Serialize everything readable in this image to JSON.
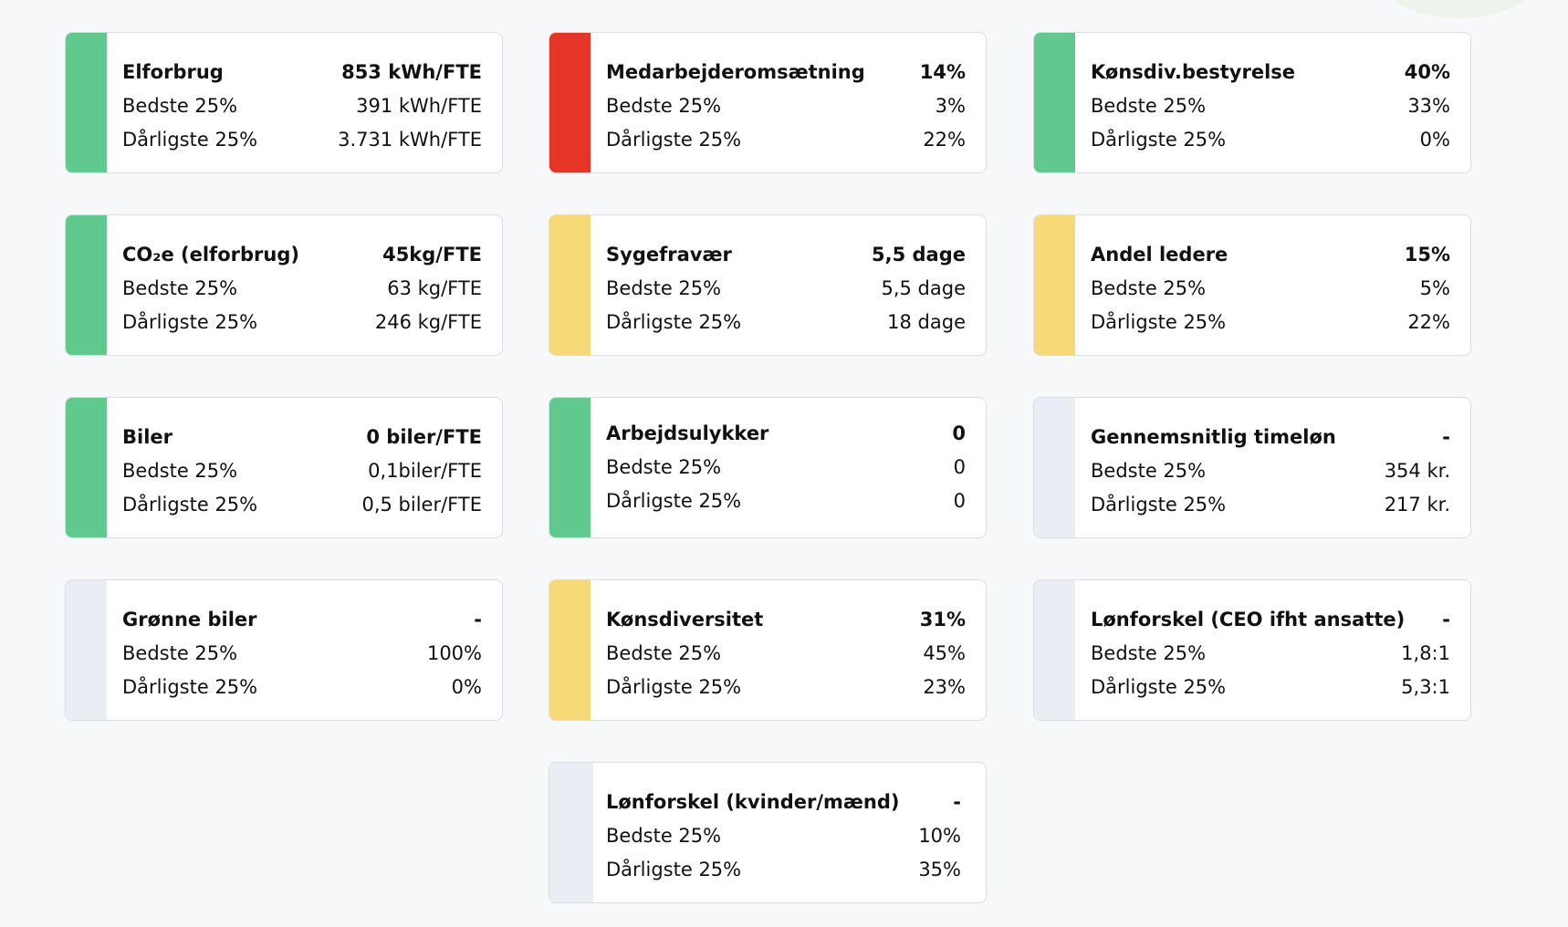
{
  "colors": {
    "green": "#62c98e",
    "red": "#e63426",
    "yellow": "#f8d978",
    "gray": "#eaedf4"
  },
  "cards": [
    {
      "title": "Elforbrug",
      "value": "853 kWh/FTE",
      "best_label": "Bedste 25%",
      "best": "391 kWh/FTE",
      "worst_label": "Dårligste 25%",
      "worst": "3.731 kWh/FTE",
      "status": "green"
    },
    {
      "title": "Medarbejderomsætning",
      "value": "14%",
      "best_label": "Bedste 25%",
      "best": "3%",
      "worst_label": "Dårligste 25%",
      "worst": "22%",
      "status": "red"
    },
    {
      "title": "Kønsdiv.bestyrelse",
      "value": "40%",
      "best_label": "Bedste 25%",
      "best": "33%",
      "worst_label": "Dårligste 25%",
      "worst": "0%",
      "status": "green"
    },
    {
      "title": "CO₂e (elforbrug)",
      "value": "45kg/FTE",
      "best_label": "Bedste 25%",
      "best": "63 kg/FTE",
      "worst_label": "Dårligste 25%",
      "worst": "246 kg/FTE",
      "status": "green"
    },
    {
      "title": "Sygefravær",
      "value": "5,5 dage",
      "best_label": "Bedste 25%",
      "best": "5,5 dage",
      "worst_label": "Dårligste 25%",
      "worst": "18 dage",
      "status": "yellow"
    },
    {
      "title": "Andel ledere",
      "value": "15%",
      "best_label": "Bedste 25%",
      "best": "5%",
      "worst_label": "Dårligste 25%",
      "worst": "22%",
      "status": "yellow"
    },
    {
      "title": "Biler",
      "value": "0 biler/FTE",
      "best_label": "Bedste 25%",
      "best": "0,1biler/FTE",
      "worst_label": "Dårligste 25%",
      "worst": "0,5 biler/FTE",
      "status": "green"
    },
    {
      "title": "Arbejdsulykker",
      "value": "0",
      "best_label": "Bedste 25%",
      "best": "0",
      "worst_label": "Dårligste 25%",
      "worst": "0",
      "status": "green"
    },
    {
      "title": "Gennemsnitlig timeløn",
      "value": "-",
      "best_label": "Bedste 25%",
      "best": "354 kr.",
      "worst_label": "Dårligste 25%",
      "worst": "217 kr.",
      "status": "gray"
    },
    {
      "title": "Grønne biler",
      "value": "-",
      "best_label": "Bedste 25%",
      "best": "100%",
      "worst_label": "Dårligste 25%",
      "worst": "0%",
      "status": "gray"
    },
    {
      "title": "Kønsdiversitet",
      "value": "31%",
      "best_label": "Bedste 25%",
      "best": "45%",
      "worst_label": "Dårligste 25%",
      "worst": "23%",
      "status": "yellow"
    },
    {
      "title": "Lønforskel (CEO ifht ansatte)",
      "value": "-",
      "best_label": "Bedste 25%",
      "best": "1,8:1",
      "worst_label": "Dårligste 25%",
      "worst": "5,3:1",
      "status": "gray"
    },
    {
      "title": "Lønforskel (kvinder/mænd)",
      "value": "-",
      "best_label": "Bedste 25%",
      "best": "10%",
      "worst_label": "Dårligste 25%",
      "worst": "35%",
      "status": "gray"
    }
  ]
}
